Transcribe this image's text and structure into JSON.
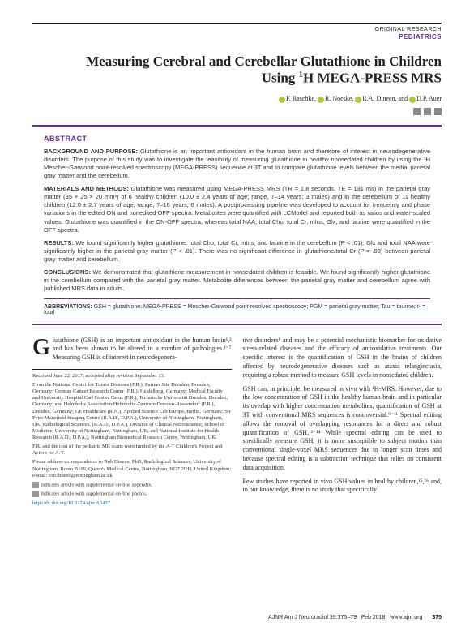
{
  "header": {
    "label1": "ORIGINAL RESEARCH",
    "label2": "PEDIATRICS"
  },
  "title": "Measuring Cerebral and Cerebellar Glutathione in Children Using ¹H MEGA-PRESS MRS",
  "authors": {
    "a1": "F. Raschke,",
    "a2": "R. Noeske,",
    "a3": "R.A. Dineen,",
    "a4": "D.P. Auer",
    "sep": "and"
  },
  "abstract": {
    "heading": "ABSTRACT",
    "bg_label": "BACKGROUND AND PURPOSE:",
    "bg_text": "Glutathione is an important antioxidant in the human brain and therefore of interest in neurodegenerative disorders. The purpose of this study was to investigate the feasibility of measuring glutathione in healthy nonsedated children by using the ¹H Mescher-Garwood point-resolved spectroscopy (MEGA-PRESS) sequence at 3T and to compare glutathione levels between the medial parietal gray matter and the cerebellum.",
    "mm_label": "MATERIALS AND METHODS:",
    "mm_text": "Glutathione was measured using MEGA-PRESS MRS (TR = 1.8 seconds, TE = 131 ms) in the parietal gray matter (35 × 25 × 20 mm³) of 6 healthy children (10.0 ± 2.4 years of age; range, 7–14 years; 3 males) and in the cerebellum of 11 healthy children (12.0 ± 2.7 years of age; range, 7–16 years; 6 males). A postprocessing pipeline was developed to account for frequency and phase variations in the edited ON and nonedited OFF spectra. Metabolites were quantified with LCModel and reported both as ratios and water-scaled values. Glutathione was quantified in the ON-OFF spectra, whereas total NAA, total Cho, total Cr, mIns, Glx, and taurine were quantified in the OFF spectra.",
    "res_label": "RESULTS:",
    "res_text": "We found significantly higher glutathione, total Cho, total Cr, mIns, and taurine in the cerebellum (P < .01). Glx and total NAA were significantly higher in the parietal gray matter (P < .01). There was no significant difference in glutathione/total Cr (P = .93) between parietal gray matter and cerebellum.",
    "con_label": "CONCLUSIONS:",
    "con_text": "We demonstrated that glutathione measurement in nonsedated children is feasible. We found significantly higher glutathione in the cerebellum compared with the parietal gray matter. Metabolite differences between the parietal gray matter and cerebellum agree with published MRS data in adults.",
    "abbrev_label": "ABBREVIATIONS:",
    "abbrev_text": "GSH = glutathione; MEGA-PRESS = Mescher-Garwood point-resolved spectroscopy; PGM = parietal gray matter; Tau = taurine; t- = total"
  },
  "body": {
    "col1_p1_dropcap": "G",
    "col1_p1": "lutathione (GSH) is an important antioxidant in the human brain¹,² and has been shown to be altered in a number of pathologies.³⁻⁷ Measuring GSH is of interest in neurodegenera-",
    "col2_p1": "tive disorders⁸ and may be a potential mechanistic biomarker for oxidative stress-related diseases and the efficacy of antioxidative treatments. Our specific interest is the quantification of GSH in the brains of children affected by neurodegenerative diseases such as ataxia telangiectasia, requiring a robust method to measure GSH levels in nonsedated children.",
    "col2_p2": "GSH can, in principle, be measured in vivo with ¹H-MRS. However, due to the low concentration of GSH in the healthy human brain and in particular its overlap with higher concentration metabolites, quantification of GSH at 3T with conventional MRS sequences is controversial.⁹⁻¹¹ Spectral editing allows the removal of overlapping resonances for a direct and robust quantification of GSH.¹²⁻¹⁴ While spectral editing can be used to specifically measure GSH, it is more susceptible to subject motion than conventional single-voxel MRS sequences due to longer scan times and because spectral editing is a subtraction technique that relies on consistent data acquisition.",
    "col2_p3": "Few studies have reported in vivo GSH values in healthy children,¹⁵,¹⁶ and, to our knowledge, there is no study that specifically"
  },
  "footnotes": {
    "received": "Received June 22, 2017; accepted after revision September 13.",
    "from": "From the National Center for Tumor Diseases (F.R.), Partner Site Dresden, Dresden, Germany; German Cancer Research Center (F.R.), Heidelberg, Germany; Medical Faculty and University Hospital Carl Gustav Carus (F.R.), Technische Universität Dresden, Dresden, Germany; and Helmholtz Association/Helmholtz-Zentrum Dresden-Rossendorf (F.R.), Dresden, Germany; GE Healthcare (R.N.), Applied Science Lab Europe, Berlin, Germany; Sir Peter Mansfield Imaging Centre (R.A.D., D.P.A.), University of Nottingham, Nottingham, UK; Radiological Sciences, (R.A.D., D.P.A.), Division of Clinical Neuroscience, School of Medicine, University of Nottingham, Nottingham, UK; and National Institute for Health Research (R.A.D., D.P.A.), Nottingham Biomedical Research Centre, Nottingham, UK.",
    "funding": "F.R. and the cost of the pediatric MR scans were funded by the A-T Children's Project and Action for A-T.",
    "correspondence": "Please address correspondence to Rob Dineen, PhD, Radiological Sciences, University of Nottingham, Room B109, Queen's Medical Centre, Nottingham, NG7 2UH, United Kingdom; e-mail: rob.dineen@nottingham.ac.uk",
    "suppl1": "Indicates article with supplemental on-line appendix.",
    "suppl2": "Indicates article with supplemental on-line photos.",
    "doi": "http://dx.doi.org/10.3174/ajnr.A5457"
  },
  "footer": {
    "journal": "AJNR Am J Neuroradiol 39:375–79",
    "date": "Feb 2018",
    "url": "www.ajnr.org",
    "page": "375"
  },
  "colors": {
    "accent": "#6b2c91",
    "orcid": "#a6ce39",
    "text": "#231f20",
    "link": "#0066cc"
  }
}
